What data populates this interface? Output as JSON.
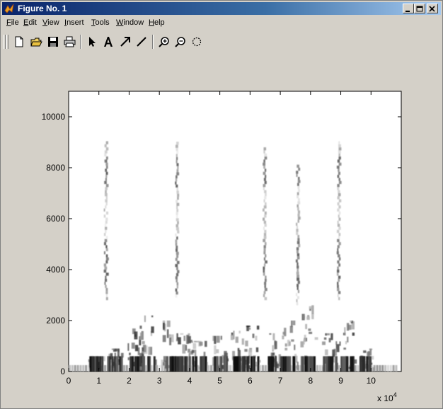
{
  "window": {
    "title": "Figure No. 1"
  },
  "menu": {
    "items": [
      {
        "label": "File",
        "ul": "F",
        "rest": "ile"
      },
      {
        "label": "Edit",
        "ul": "E",
        "rest": "dit"
      },
      {
        "label": "View",
        "ul": "V",
        "rest": "iew"
      },
      {
        "label": "Insert",
        "ul": "I",
        "rest": "nsert"
      },
      {
        "label": "Tools",
        "ul": "T",
        "rest": "ools"
      },
      {
        "label": "Window",
        "ul": "W",
        "rest": "indow"
      },
      {
        "label": "Help",
        "ul": "H",
        "rest": "elp"
      }
    ]
  },
  "toolbar": {
    "buttons": [
      "new-figure-icon",
      "open-folder-icon",
      "save-icon",
      "print-icon",
      "select-arrow-icon",
      "text-icon",
      "arrow-icon",
      "line-icon",
      "zoom-in-icon",
      "zoom-out-icon",
      "rotate-3d-icon"
    ]
  },
  "chart_data": {
    "type": "heatmap",
    "title": "",
    "xlabel": "",
    "ylabel": "",
    "x_multiplier_label": "x 10",
    "x_multiplier_exponent": "4",
    "xlim": [
      0,
      11
    ],
    "ylim": [
      0,
      11000
    ],
    "xticks": [
      "0",
      "1",
      "2",
      "3",
      "4",
      "5",
      "6",
      "7",
      "8",
      "9",
      "10"
    ],
    "yticks": [
      "0",
      "2000",
      "4000",
      "6000",
      "8000",
      "10000"
    ],
    "xtick_values": [
      0,
      1,
      2,
      3,
      4,
      5,
      6,
      7,
      8,
      9,
      10
    ],
    "ytick_values": [
      0,
      2000,
      4000,
      6000,
      8000,
      10000
    ],
    "colormap": "gray-inverted",
    "formant_streaks": [
      {
        "x": 1.2,
        "y_low": 2800,
        "y_high": 9000
      },
      {
        "x": 3.55,
        "y_low": 2900,
        "y_high": 9000
      },
      {
        "x": 6.45,
        "y_low": 2800,
        "y_high": 8800
      },
      {
        "x": 7.55,
        "y_low": 2600,
        "y_high": 8100
      },
      {
        "x": 8.9,
        "y_low": 2800,
        "y_high": 9000
      }
    ],
    "low_frequency_bursts": [
      {
        "x": 0.9,
        "y_high": 600
      },
      {
        "x": 1.5,
        "y_high": 900
      },
      {
        "x": 2.2,
        "y_high": 1800
      },
      {
        "x": 2.6,
        "y_high": 2200
      },
      {
        "x": 3.3,
        "y_high": 2000
      },
      {
        "x": 3.8,
        "y_high": 1500
      },
      {
        "x": 4.3,
        "y_high": 1200
      },
      {
        "x": 5.0,
        "y_high": 1400
      },
      {
        "x": 5.6,
        "y_high": 1600
      },
      {
        "x": 6.1,
        "y_high": 1800
      },
      {
        "x": 6.8,
        "y_high": 1500
      },
      {
        "x": 7.3,
        "y_high": 2000
      },
      {
        "x": 7.9,
        "y_high": 2600
      },
      {
        "x": 8.6,
        "y_high": 1500
      },
      {
        "x": 9.2,
        "y_high": 2000
      },
      {
        "x": 9.8,
        "y_high": 900
      }
    ],
    "grid": false
  }
}
